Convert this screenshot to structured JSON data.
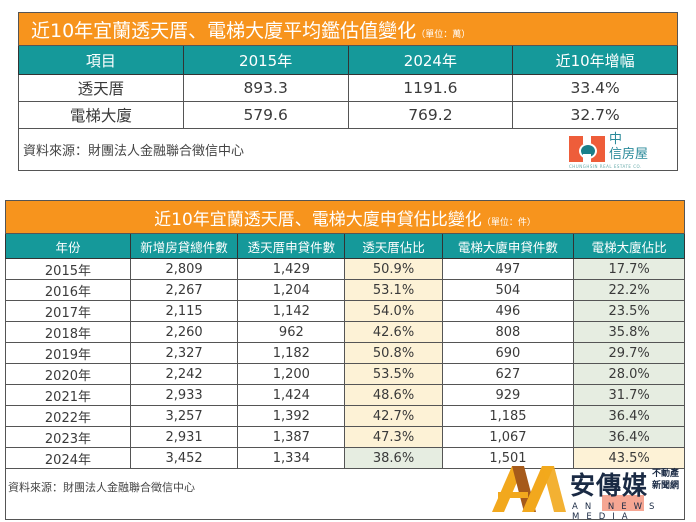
{
  "table1": {
    "title": "近10年宜蘭透天厝、電梯大廈平均鑑估值變化",
    "unit": "（單位：萬）",
    "headers": [
      "項目",
      "2015年",
      "2024年",
      "近10年增幅"
    ],
    "rows": [
      [
        "透天厝",
        "893.3",
        "1191.6",
        "33.4%"
      ],
      [
        "電梯大廈",
        "579.6",
        "769.2",
        "32.7%"
      ]
    ],
    "source": "資料來源：財團法人金融聯合徵信中心",
    "logo": {
      "line1": "中",
      "line2": "信房屋",
      "sub": "CHUNGHSIN REAL ESTATE CO."
    }
  },
  "table2": {
    "title": "近10年宜蘭透天厝、電梯大廈申貸估比變化",
    "unit": "（單位：件）",
    "headers": [
      "年份",
      "新增房貸總件數",
      "透天厝申貸件數",
      "透天厝佔比",
      "電梯大廈申貸件數",
      "電梯大廈佔比"
    ],
    "rows": [
      [
        "2015年",
        "2,809",
        "1,429",
        "50.9%",
        "497",
        "17.7%"
      ],
      [
        "2016年",
        "2,267",
        "1,204",
        "53.1%",
        "504",
        "22.2%"
      ],
      [
        "2017年",
        "2,115",
        "1,142",
        "54.0%",
        "496",
        "23.5%"
      ],
      [
        "2018年",
        "2,260",
        "962",
        "42.6%",
        "808",
        "35.8%"
      ],
      [
        "2019年",
        "2,327",
        "1,182",
        "50.8%",
        "690",
        "29.7%"
      ],
      [
        "2020年",
        "2,242",
        "1,200",
        "53.5%",
        "627",
        "28.0%"
      ],
      [
        "2021年",
        "2,933",
        "1,424",
        "48.6%",
        "929",
        "31.7%"
      ],
      [
        "2022年",
        "3,257",
        "1,392",
        "42.7%",
        "1,185",
        "36.4%"
      ],
      [
        "2023年",
        "2,931",
        "1,387",
        "47.3%",
        "1,067",
        "36.4%"
      ],
      [
        "2024年",
        "3,452",
        "1,334",
        "38.6%",
        "1,501",
        "43.5%"
      ]
    ],
    "source": "資料來源：財團法人金融聯合徵信中心"
  },
  "watermark": {
    "name": "安傳媒",
    "tag_line1": "不動產",
    "tag_line2": "新聞網",
    "english": "AN NEWS MEDIA"
  },
  "colors": {
    "title_bg": "#f7941d",
    "header_bg": "#15999a",
    "highlight_yellow": "#fdf2d6",
    "highlight_green": "#e6ede1"
  }
}
